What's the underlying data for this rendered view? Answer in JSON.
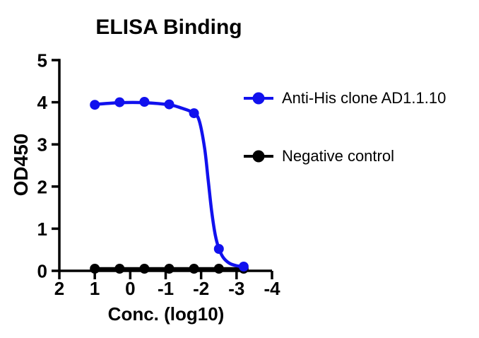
{
  "chart_data": {
    "type": "line",
    "title": "ELISA Binding",
    "xlabel": "Conc. (log10)",
    "ylabel": "OD450",
    "xlim": [
      2,
      -4
    ],
    "ylim": [
      0,
      5
    ],
    "x_axis_reversed": true,
    "grid": false,
    "legend_position": "right",
    "x_ticks": [
      2,
      1,
      0,
      -1,
      -2,
      -3,
      -4
    ],
    "y_ticks": [
      0,
      1,
      2,
      3,
      4,
      5
    ],
    "x": [
      1,
      0.3,
      -0.4,
      -1.1,
      -1.8,
      -2.5,
      -3.2
    ],
    "series": [
      {
        "name": "Anti-His clone AD1.1.10",
        "color": "#1111ee",
        "marker": "circle",
        "values": [
          3.94,
          4.0,
          4.01,
          3.95,
          3.74,
          0.52,
          0.1
        ],
        "fit_curve": [
          [
            1,
            3.95
          ],
          [
            0.3,
            3.99
          ],
          [
            -0.4,
            3.99
          ],
          [
            -1.1,
            3.94
          ],
          [
            -1.45,
            3.86
          ],
          [
            -1.8,
            3.74
          ],
          [
            -1.95,
            3.55
          ],
          [
            -2.1,
            2.9
          ],
          [
            -2.2,
            2.15
          ],
          [
            -2.3,
            1.4
          ],
          [
            -2.4,
            0.85
          ],
          [
            -2.5,
            0.53
          ],
          [
            -2.62,
            0.32
          ],
          [
            -2.8,
            0.18
          ],
          [
            -3.0,
            0.12
          ],
          [
            -3.2,
            0.1
          ]
        ]
      },
      {
        "name": "Negative control",
        "color": "#000000",
        "marker": "circle",
        "values": [
          0.05,
          0.05,
          0.05,
          0.05,
          0.05,
          0.05,
          0.05
        ],
        "fit_curve": null
      }
    ],
    "axis_color": "#000000",
    "background_color": "#ffffff"
  }
}
